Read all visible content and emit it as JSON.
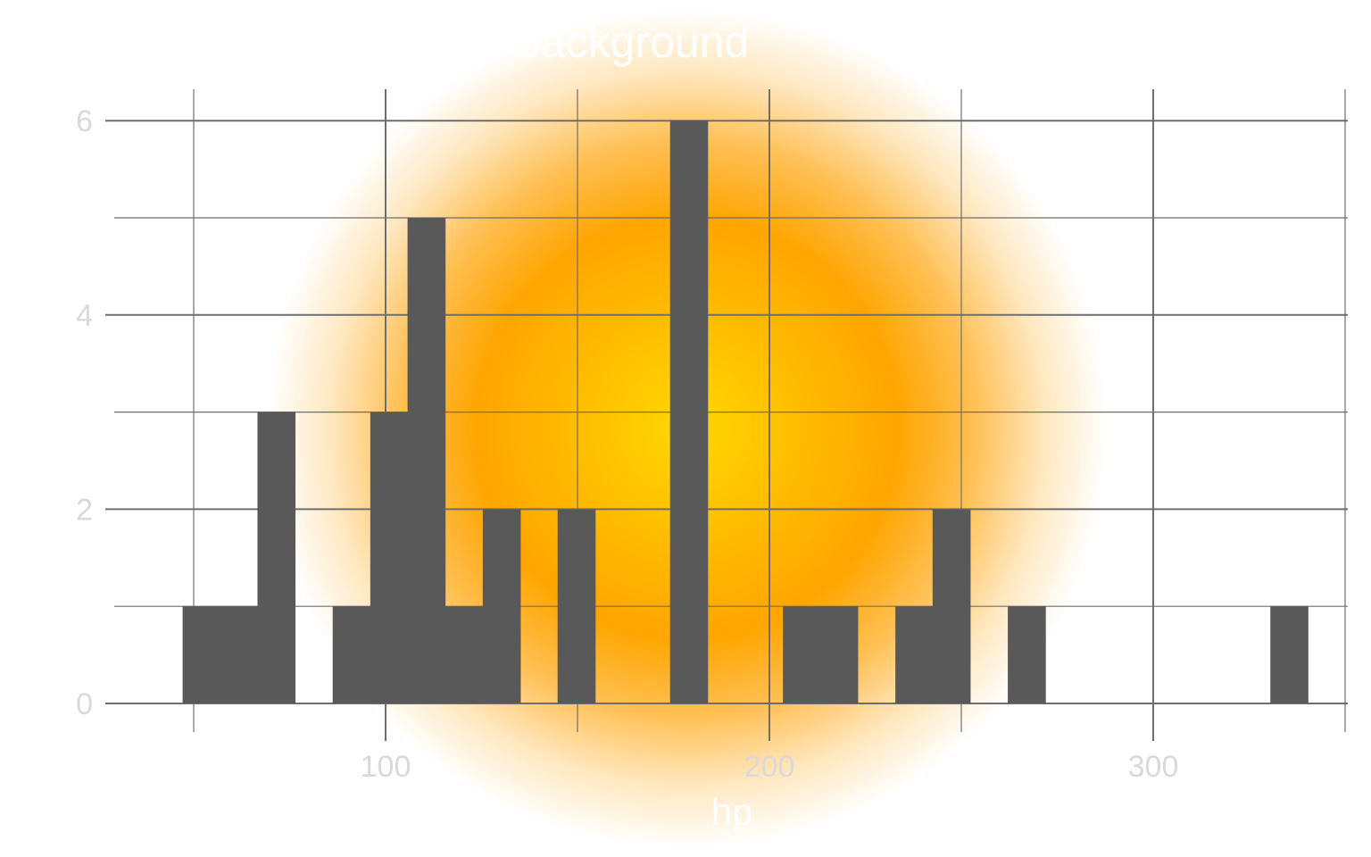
{
  "chart_data": {
    "type": "bar",
    "title": "background",
    "xlabel": "hp",
    "ylabel": "",
    "xlim": [
      25.6,
      359.4
    ],
    "ylim": [
      0,
      6.3
    ],
    "x_ticks": [
      100,
      200,
      300
    ],
    "x_tick_labels": [
      "100",
      "200",
      "300"
    ],
    "y_ticks": [
      0,
      2,
      4,
      6
    ],
    "y_tick_labels": [
      "0",
      "2",
      "4",
      "6"
    ],
    "x_minor_gridlines": [
      50,
      150,
      250,
      350
    ],
    "y_minor_gridlines": [
      1,
      3,
      5
    ],
    "grid": true,
    "bin_width": 9.77,
    "bins": [
      {
        "x": 52,
        "count": 1
      },
      {
        "x": 61.8,
        "count": 1
      },
      {
        "x": 71.5,
        "count": 3
      },
      {
        "x": 81.3,
        "count": 0
      },
      {
        "x": 91.1,
        "count": 1
      },
      {
        "x": 100.9,
        "count": 3
      },
      {
        "x": 110.6,
        "count": 5
      },
      {
        "x": 120.4,
        "count": 1
      },
      {
        "x": 130.2,
        "count": 2
      },
      {
        "x": 140,
        "count": 0
      },
      {
        "x": 149.7,
        "count": 2
      },
      {
        "x": 159.5,
        "count": 0
      },
      {
        "x": 169.3,
        "count": 0
      },
      {
        "x": 179,
        "count": 6
      },
      {
        "x": 188.8,
        "count": 0
      },
      {
        "x": 198.6,
        "count": 0
      },
      {
        "x": 208.4,
        "count": 1
      },
      {
        "x": 218.1,
        "count": 1
      },
      {
        "x": 227.9,
        "count": 0
      },
      {
        "x": 237.7,
        "count": 1
      },
      {
        "x": 247.4,
        "count": 2
      },
      {
        "x": 257.2,
        "count": 0
      },
      {
        "x": 267,
        "count": 1
      },
      {
        "x": 335.4,
        "count": 1
      }
    ],
    "colors": {
      "bar": "#595959",
      "grid": "#6e6e6e",
      "glow_center": "#ffd700",
      "glow_mid": "#ffa500"
    }
  }
}
